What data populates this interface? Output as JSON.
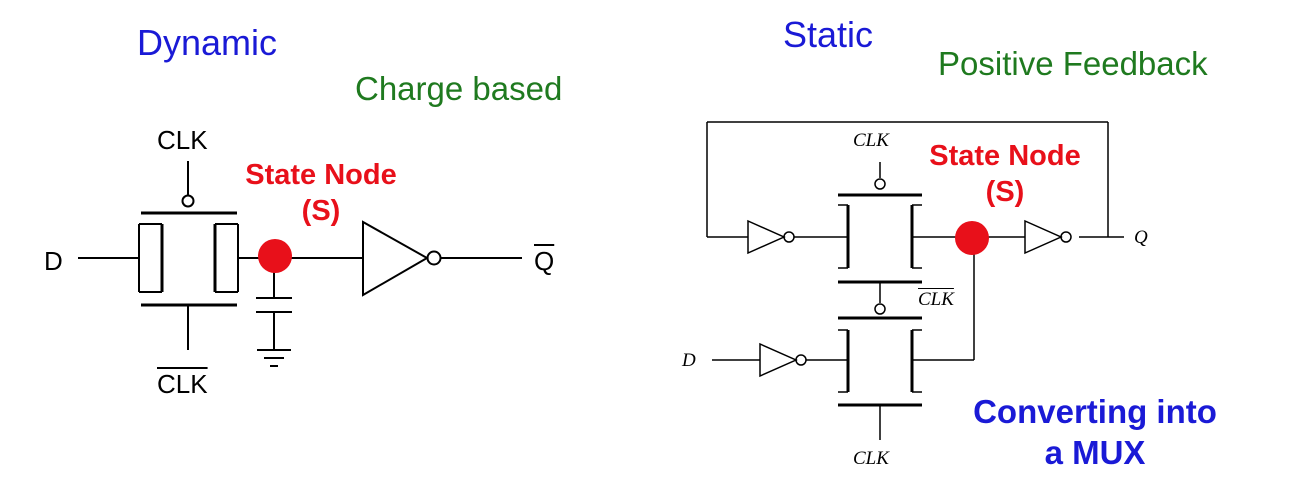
{
  "dynamic": {
    "title": "Dynamic",
    "subtitle": "Charge based",
    "clk_top": "CLK",
    "clk_bottom": "CLK",
    "input_label": "D",
    "output_label": "Q",
    "state_node_line1": "State Node",
    "state_node_line2": "(S)"
  },
  "static": {
    "title": "Static",
    "subtitle": "Positive Feedback",
    "clk_top": "CLK",
    "clk_mid": "CLK",
    "clk_bottom": "CLK",
    "input_label": "D",
    "output_label": "Q",
    "state_node_line1": "State Node",
    "state_node_line2": "(S)",
    "note_line1": "Converting into",
    "note_line2": "a MUX"
  },
  "colors": {
    "title_blue": "#1a1ad6",
    "subtitle_green": "#1f7a1f",
    "state_node_red": "#e8101a"
  }
}
